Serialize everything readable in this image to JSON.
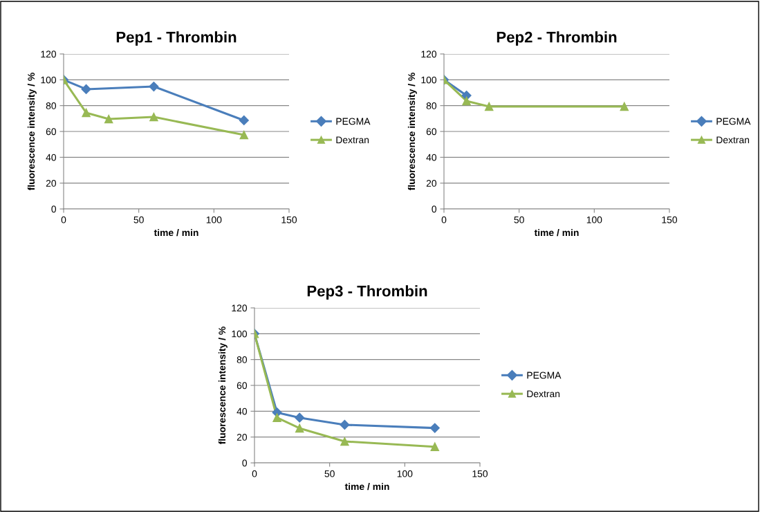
{
  "chart_data": [
    {
      "type": "line",
      "title": "Pep1 - Thrombin",
      "xlabel": "time / min",
      "ylabel": "fluorescence intensity / %",
      "xlim": [
        0,
        150
      ],
      "xticks": [
        0,
        50,
        100,
        150
      ],
      "ylim": [
        0,
        120
      ],
      "yticks": [
        0,
        20,
        40,
        60,
        80,
        100,
        120
      ],
      "grid": "y",
      "legend": "right",
      "series": [
        {
          "name": "PEGMA",
          "color": "#4a7ebb",
          "marker": "diamond",
          "x": [
            0,
            15,
            60,
            120
          ],
          "values": [
            100,
            92.7,
            94.8,
            68.6
          ]
        },
        {
          "name": "Dextran",
          "color": "#98b954",
          "marker": "triangle",
          "x": [
            0,
            15,
            30,
            60,
            120
          ],
          "values": [
            100,
            74.5,
            69.6,
            71.2,
            57.3
          ]
        }
      ]
    },
    {
      "type": "line",
      "title": "Pep2 - Thrombin",
      "xlabel": "time / min",
      "ylabel": "fluorescence intensity / %",
      "xlim": [
        0,
        150
      ],
      "xticks": [
        0,
        50,
        100,
        150
      ],
      "ylim": [
        0,
        120
      ],
      "yticks": [
        0,
        20,
        40,
        60,
        80,
        100,
        120
      ],
      "grid": "y",
      "legend": "right",
      "series": [
        {
          "name": "PEGMA",
          "color": "#4a7ebb",
          "marker": "diamond",
          "x": [
            0,
            15
          ],
          "values": [
            100,
            87.8
          ]
        },
        {
          "name": "Dextran",
          "color": "#98b954",
          "marker": "triangle",
          "x": [
            0,
            15,
            30,
            120
          ],
          "values": [
            100,
            83.6,
            79.3,
            79.3
          ]
        }
      ]
    },
    {
      "type": "line",
      "title": "Pep3 - Thrombin",
      "xlabel": "time / min",
      "ylabel": "fluorescence intensity / %",
      "xlim": [
        0,
        150
      ],
      "xticks": [
        0,
        50,
        100,
        150
      ],
      "ylim": [
        0,
        120
      ],
      "yticks": [
        0,
        20,
        40,
        60,
        80,
        100,
        120
      ],
      "grid": "y",
      "legend": "right",
      "series": [
        {
          "name": "PEGMA",
          "color": "#4a7ebb",
          "marker": "diamond",
          "x": [
            0,
            15,
            30,
            60,
            120
          ],
          "values": [
            100,
            39,
            35,
            29.5,
            27
          ]
        },
        {
          "name": "Dextran",
          "color": "#98b954",
          "marker": "triangle",
          "x": [
            0,
            15,
            30,
            60,
            120
          ],
          "values": [
            100,
            35,
            26.8,
            16.6,
            12.5
          ]
        }
      ]
    }
  ]
}
